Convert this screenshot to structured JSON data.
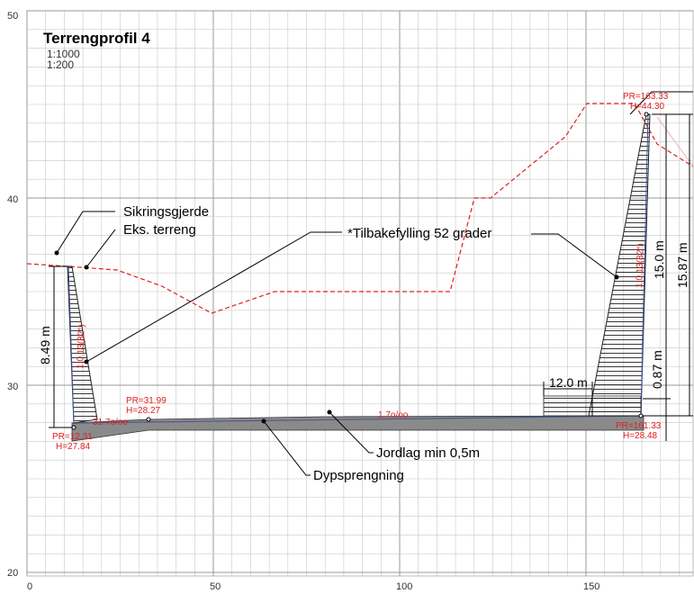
{
  "title": "Terrengprofil 4",
  "scales": [
    "1:1000",
    "1:200"
  ],
  "axes": {
    "x_ticks": [
      "0",
      "50",
      "100",
      "150"
    ],
    "y_ticks": [
      "50",
      "40",
      "30",
      "20"
    ]
  },
  "callouts": {
    "fence": "Sikringsgjerde",
    "existing_terrain": "Eks. terreng",
    "backfill": "*Tilbakefylling 52 grader",
    "soil_layer": "Jordlag min 0,5m",
    "deep_blasting": "Dypsprengning"
  },
  "labels": {
    "pr_left_a": "PR=12.31",
    "h_left_a": "H=27.84",
    "pr_left_b": "PR=31.99",
    "h_left_b": "H=28.27",
    "slope_left": "31.7o/oo",
    "slope_mid": "1.7o/oo",
    "pr_right_top": "PR=163.33",
    "h_right_top": "H=44.30",
    "pr_right_bot": "PR=161.33",
    "h_right_bot": "H=28.48",
    "left_wall_text": "1:0.13(82°)",
    "right_wall_text": "1:0.13(82°)"
  },
  "dimensions": {
    "left_height": "8.49 m",
    "width_bottom": "12.0 m",
    "right_15": "15.0 m",
    "right_1587": "15.87 m",
    "right_087": "0.87 m"
  },
  "colors": {
    "grid": "#c8c8c8",
    "grid_major": "#9a9a9a",
    "terrain": "#e02020",
    "fill": "#8a8a8a",
    "hatch": "#222222"
  }
}
